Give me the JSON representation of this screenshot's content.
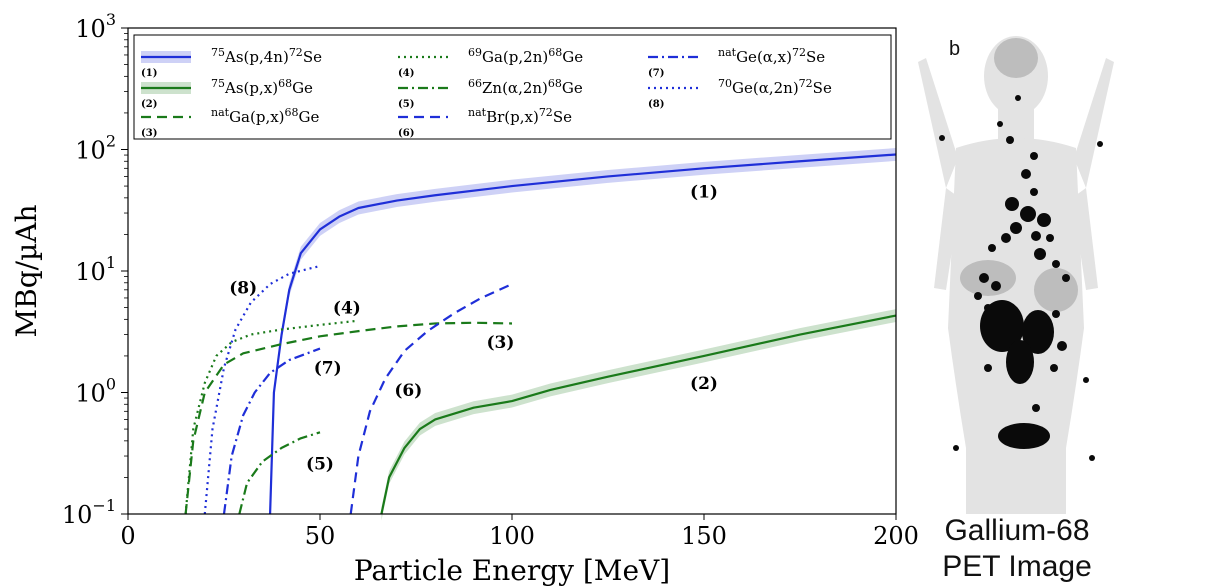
{
  "chart_data": {
    "type": "line",
    "xlabel": "Particle Energy [MeV]",
    "ylabel": "MBq/µAh",
    "xlim": [
      0,
      200
    ],
    "ylim": [
      0.1,
      1000
    ],
    "yscale": "log",
    "grid": false,
    "legend_position": "top, inside (3 columns)",
    "x_ticks": [
      "0",
      "50",
      "100",
      "150",
      "200"
    ],
    "y_ticks": [
      {
        "base": "10",
        "exp": "−1"
      },
      {
        "base": "10",
        "exp": "0"
      },
      {
        "base": "10",
        "exp": "1"
      },
      {
        "base": "10",
        "exp": "2"
      },
      {
        "base": "10",
        "exp": "3"
      }
    ],
    "series": [
      {
        "name": "75As(p,4n)72Se",
        "label_parts": [
          "75",
          "As(p,4n)",
          "72",
          "Se"
        ],
        "index": "(1)",
        "color": "#1f2fd8",
        "dash": "solid",
        "band": true,
        "points": [
          [
            37,
            0.1
          ],
          [
            38,
            1.0
          ],
          [
            40,
            3.0
          ],
          [
            42,
            7.0
          ],
          [
            45,
            14
          ],
          [
            50,
            22
          ],
          [
            55,
            28
          ],
          [
            60,
            33
          ],
          [
            70,
            38
          ],
          [
            80,
            42
          ],
          [
            100,
            50
          ],
          [
            125,
            60
          ],
          [
            150,
            70
          ],
          [
            175,
            80
          ],
          [
            200,
            91
          ]
        ]
      },
      {
        "name": "75As(p,x)68Ge",
        "label_parts": [
          "75",
          "As(p,x)",
          "68",
          "Ge"
        ],
        "index": "(2)",
        "color": "#1a7a1a",
        "dash": "solid",
        "band": true,
        "points": [
          [
            66,
            0.1
          ],
          [
            68,
            0.2
          ],
          [
            72,
            0.35
          ],
          [
            76,
            0.5
          ],
          [
            80,
            0.6
          ],
          [
            90,
            0.75
          ],
          [
            100,
            0.85
          ],
          [
            110,
            1.05
          ],
          [
            125,
            1.35
          ],
          [
            150,
            2.0
          ],
          [
            175,
            3.0
          ],
          [
            200,
            4.3
          ]
        ]
      },
      {
        "name": "natGa(p,x)68Ge",
        "label_parts": [
          "nat",
          "Ga(p,x)",
          "68",
          "Ge"
        ],
        "index": "(3)",
        "color": "#1a7a1a",
        "dash": "10,6",
        "band": false,
        "points": [
          [
            15,
            0.1
          ],
          [
            17,
            0.4
          ],
          [
            20,
            1.0
          ],
          [
            25,
            1.7
          ],
          [
            30,
            2.1
          ],
          [
            40,
            2.5
          ],
          [
            50,
            2.9
          ],
          [
            60,
            3.2
          ],
          [
            70,
            3.5
          ],
          [
            80,
            3.7
          ],
          [
            90,
            3.75
          ],
          [
            100,
            3.7
          ]
        ]
      },
      {
        "name": "69Ga(p,2n)68Ge",
        "label_parts": [
          "69",
          "Ga(p,2n)",
          "68",
          "Ge"
        ],
        "index": "(4)",
        "color": "#1a7a1a",
        "dash": "2,4",
        "band": false,
        "points": [
          [
            15,
            0.1
          ],
          [
            17,
            0.5
          ],
          [
            20,
            1.2
          ],
          [
            23,
            2.0
          ],
          [
            27,
            2.6
          ],
          [
            32,
            3.0
          ],
          [
            40,
            3.3
          ],
          [
            50,
            3.6
          ],
          [
            60,
            3.9
          ]
        ]
      },
      {
        "name": "66Zn(α,2n)68Ge",
        "label_parts": [
          "66",
          "Zn(α,2n)",
          "68",
          "Ge"
        ],
        "index": "(5)",
        "color": "#1a7a1a",
        "dash": "10,4,2,4",
        "band": false,
        "points": [
          [
            29,
            0.1
          ],
          [
            31,
            0.18
          ],
          [
            35,
            0.27
          ],
          [
            40,
            0.35
          ],
          [
            45,
            0.42
          ],
          [
            50,
            0.47
          ]
        ]
      },
      {
        "name": "natBr(p,x)72Se",
        "label_parts": [
          "nat",
          "Br(p,x)",
          "72",
          "Se"
        ],
        "index": "(6)",
        "color": "#1f2fd8",
        "dash": "10,6",
        "band": false,
        "points": [
          [
            58,
            0.1
          ],
          [
            60,
            0.3
          ],
          [
            63,
            0.7
          ],
          [
            67,
            1.3
          ],
          [
            72,
            2.2
          ],
          [
            78,
            3.2
          ],
          [
            85,
            4.5
          ],
          [
            92,
            6.0
          ],
          [
            100,
            7.8
          ]
        ]
      },
      {
        "name": "natGe(α,x)72Se",
        "label_parts": [
          "nat",
          "Ge(α,x)",
          "72",
          "Se"
        ],
        "index": "(7)",
        "color": "#1f2fd8",
        "dash": "10,4,2,4",
        "band": false,
        "points": [
          [
            25,
            0.1
          ],
          [
            27,
            0.3
          ],
          [
            30,
            0.65
          ],
          [
            33,
            1.0
          ],
          [
            37,
            1.45
          ],
          [
            42,
            1.85
          ],
          [
            50,
            2.3
          ]
        ]
      },
      {
        "name": "70Ge(α,2n)72Se",
        "label_parts": [
          "70",
          "Ge(α,2n)",
          "72",
          "Se"
        ],
        "index": "(8)",
        "color": "#1f2fd8",
        "dash": "2,4",
        "band": false,
        "points": [
          [
            20,
            0.1
          ],
          [
            22,
            0.5
          ],
          [
            25,
            1.6
          ],
          [
            28,
            3.3
          ],
          [
            32,
            5.5
          ],
          [
            37,
            7.8
          ],
          [
            42,
            9.5
          ],
          [
            50,
            11
          ]
        ]
      }
    ],
    "annotations": [
      {
        "text": "(1)",
        "x": 150,
        "y": 45
      },
      {
        "text": "(2)",
        "x": 150,
        "y": 1.2
      },
      {
        "text": "(3)",
        "x": 97,
        "y": 2.6
      },
      {
        "text": "(4)",
        "x": 57,
        "y": 5.0
      },
      {
        "text": "(5)",
        "x": 50,
        "y": 0.26
      },
      {
        "text": "(6)",
        "x": 73,
        "y": 1.05
      },
      {
        "text": "(7)",
        "x": 52,
        "y": 1.6
      },
      {
        "text": "(8)",
        "x": 30,
        "y": 7.3
      }
    ]
  },
  "pet_image": {
    "corner_label": "b",
    "caption_line1": "Gallium-68",
    "caption_line2": "PET Image"
  }
}
